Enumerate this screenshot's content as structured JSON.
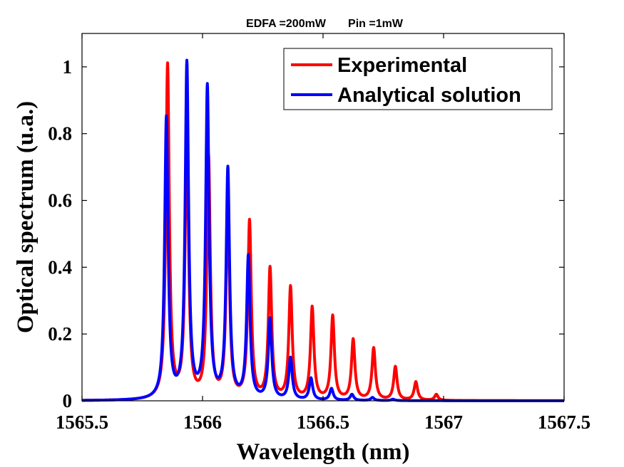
{
  "chart_data": {
    "type": "line",
    "title": "EDFA =200mW       Pin =1mW",
    "xlabel": "Wavelength (nm)",
    "ylabel": "Optical spectrum (u.a.)",
    "xlim": [
      1565.5,
      1567.5
    ],
    "ylim": [
      0,
      1.1
    ],
    "x_ticks": [
      1565.5,
      1566,
      1566.5,
      1567,
      1567.5
    ],
    "x_tick_labels": [
      "1565.5",
      "1566",
      "1566.5",
      "1567",
      "1567.5"
    ],
    "y_ticks": [
      0,
      0.2,
      0.4,
      0.6,
      0.8,
      1
    ],
    "y_tick_labels": [
      "0",
      "0.2",
      "0.4",
      "0.6",
      "0.8",
      "1"
    ],
    "grid": false,
    "legend_position": "top-right",
    "series": [
      {
        "name": "Experimental",
        "color": "#ff0000",
        "peaks": [
          {
            "x": 1565.855,
            "y": 1.0
          },
          {
            "x": 1565.935,
            "y": 0.79
          },
          {
            "x": 1566.025,
            "y": 0.72
          },
          {
            "x": 1566.105,
            "y": 0.57
          },
          {
            "x": 1566.195,
            "y": 0.53
          },
          {
            "x": 1566.28,
            "y": 0.39
          },
          {
            "x": 1566.365,
            "y": 0.335
          },
          {
            "x": 1566.455,
            "y": 0.275
          },
          {
            "x": 1566.54,
            "y": 0.25
          },
          {
            "x": 1566.625,
            "y": 0.18
          },
          {
            "x": 1566.71,
            "y": 0.155
          },
          {
            "x": 1566.8,
            "y": 0.1
          },
          {
            "x": 1566.885,
            "y": 0.055
          },
          {
            "x": 1566.97,
            "y": 0.018
          }
        ]
      },
      {
        "name": "Analytical solution",
        "color": "#0000ff",
        "peaks": [
          {
            "x": 1565.85,
            "y": 0.84
          },
          {
            "x": 1565.935,
            "y": 1.0
          },
          {
            "x": 1566.02,
            "y": 0.93
          },
          {
            "x": 1566.105,
            "y": 0.685
          },
          {
            "x": 1566.19,
            "y": 0.425
          },
          {
            "x": 1566.28,
            "y": 0.24
          },
          {
            "x": 1566.365,
            "y": 0.125
          },
          {
            "x": 1566.45,
            "y": 0.065
          },
          {
            "x": 1566.535,
            "y": 0.035
          },
          {
            "x": 1566.62,
            "y": 0.018
          },
          {
            "x": 1566.705,
            "y": 0.009
          },
          {
            "x": 1566.79,
            "y": 0.004
          }
        ]
      }
    ]
  }
}
